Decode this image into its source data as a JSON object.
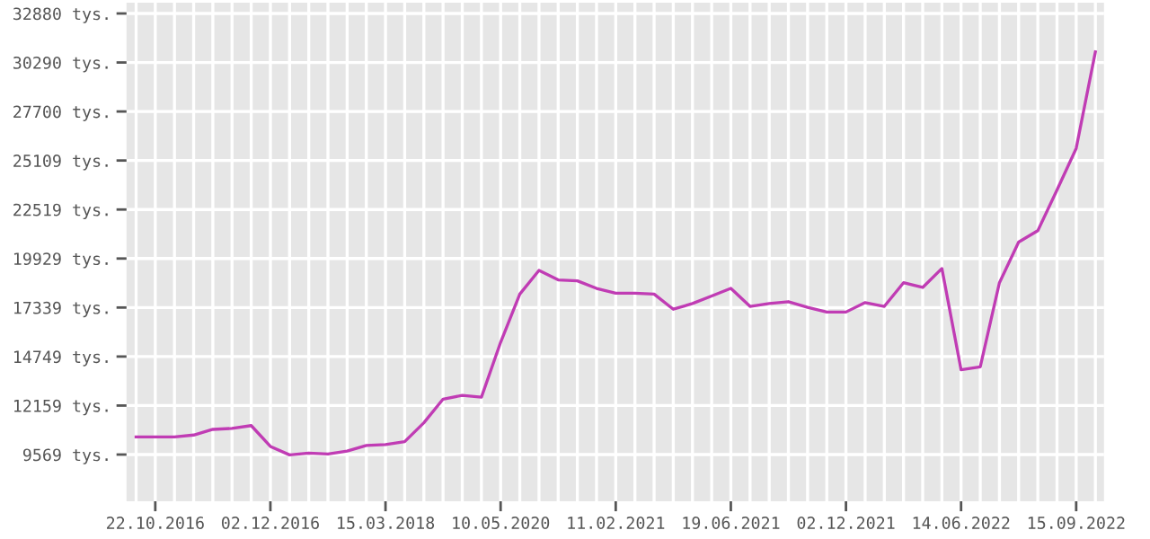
{
  "chart_data": {
    "type": "line",
    "categories": [
      null,
      "22.10.2016",
      null,
      null,
      null,
      null,
      null,
      "02.12.2016",
      null,
      null,
      null,
      null,
      null,
      "15.03.2018",
      null,
      null,
      null,
      null,
      null,
      "10.05.2020",
      null,
      null,
      null,
      null,
      null,
      "11.02.2021",
      null,
      null,
      null,
      null,
      null,
      "19.06.2021",
      null,
      null,
      null,
      null,
      null,
      "02.12.2021",
      null,
      null,
      null,
      null,
      null,
      "14.06.2022",
      null,
      null,
      null,
      null,
      null,
      "15.09.2022",
      null
    ],
    "series": [
      {
        "color": "#c03cb4",
        "values": [
          10500,
          10500,
          10500,
          10600,
          10900,
          10950,
          11100,
          10000,
          9550,
          9650,
          9600,
          9750,
          10050,
          10100,
          10250,
          11250,
          12500,
          12700,
          12600,
          15500,
          18050,
          19300,
          18800,
          18750,
          18350,
          18100,
          18100,
          18050,
          17250,
          17550,
          17950,
          18350,
          17400,
          17550,
          17650,
          17350,
          17100,
          17100,
          17600,
          17400,
          18650,
          18400,
          19400,
          14050,
          14200,
          18650,
          20800,
          21400,
          23550,
          25750,
          30850
        ]
      }
    ],
    "ylim": [
      7100,
      33450
    ],
    "yticks": [
      {
        "value": 9569,
        "label": "9569 tys."
      },
      {
        "value": 12159,
        "label": "12159 tys."
      },
      {
        "value": 14749,
        "label": "14749 tys."
      },
      {
        "value": 17339,
        "label": "17339 tys."
      },
      {
        "value": 19929,
        "label": "19929 tys."
      },
      {
        "value": 22519,
        "label": "22519 tys."
      },
      {
        "value": 25109,
        "label": "25109 tys."
      },
      {
        "value": 27700,
        "label": "27700 tys."
      },
      {
        "value": 30290,
        "label": "30290 tys."
      },
      {
        "value": 32880,
        "label": "32880 tys."
      }
    ],
    "grid": true,
    "legend": false,
    "marker": "none",
    "line_style": "solid"
  }
}
